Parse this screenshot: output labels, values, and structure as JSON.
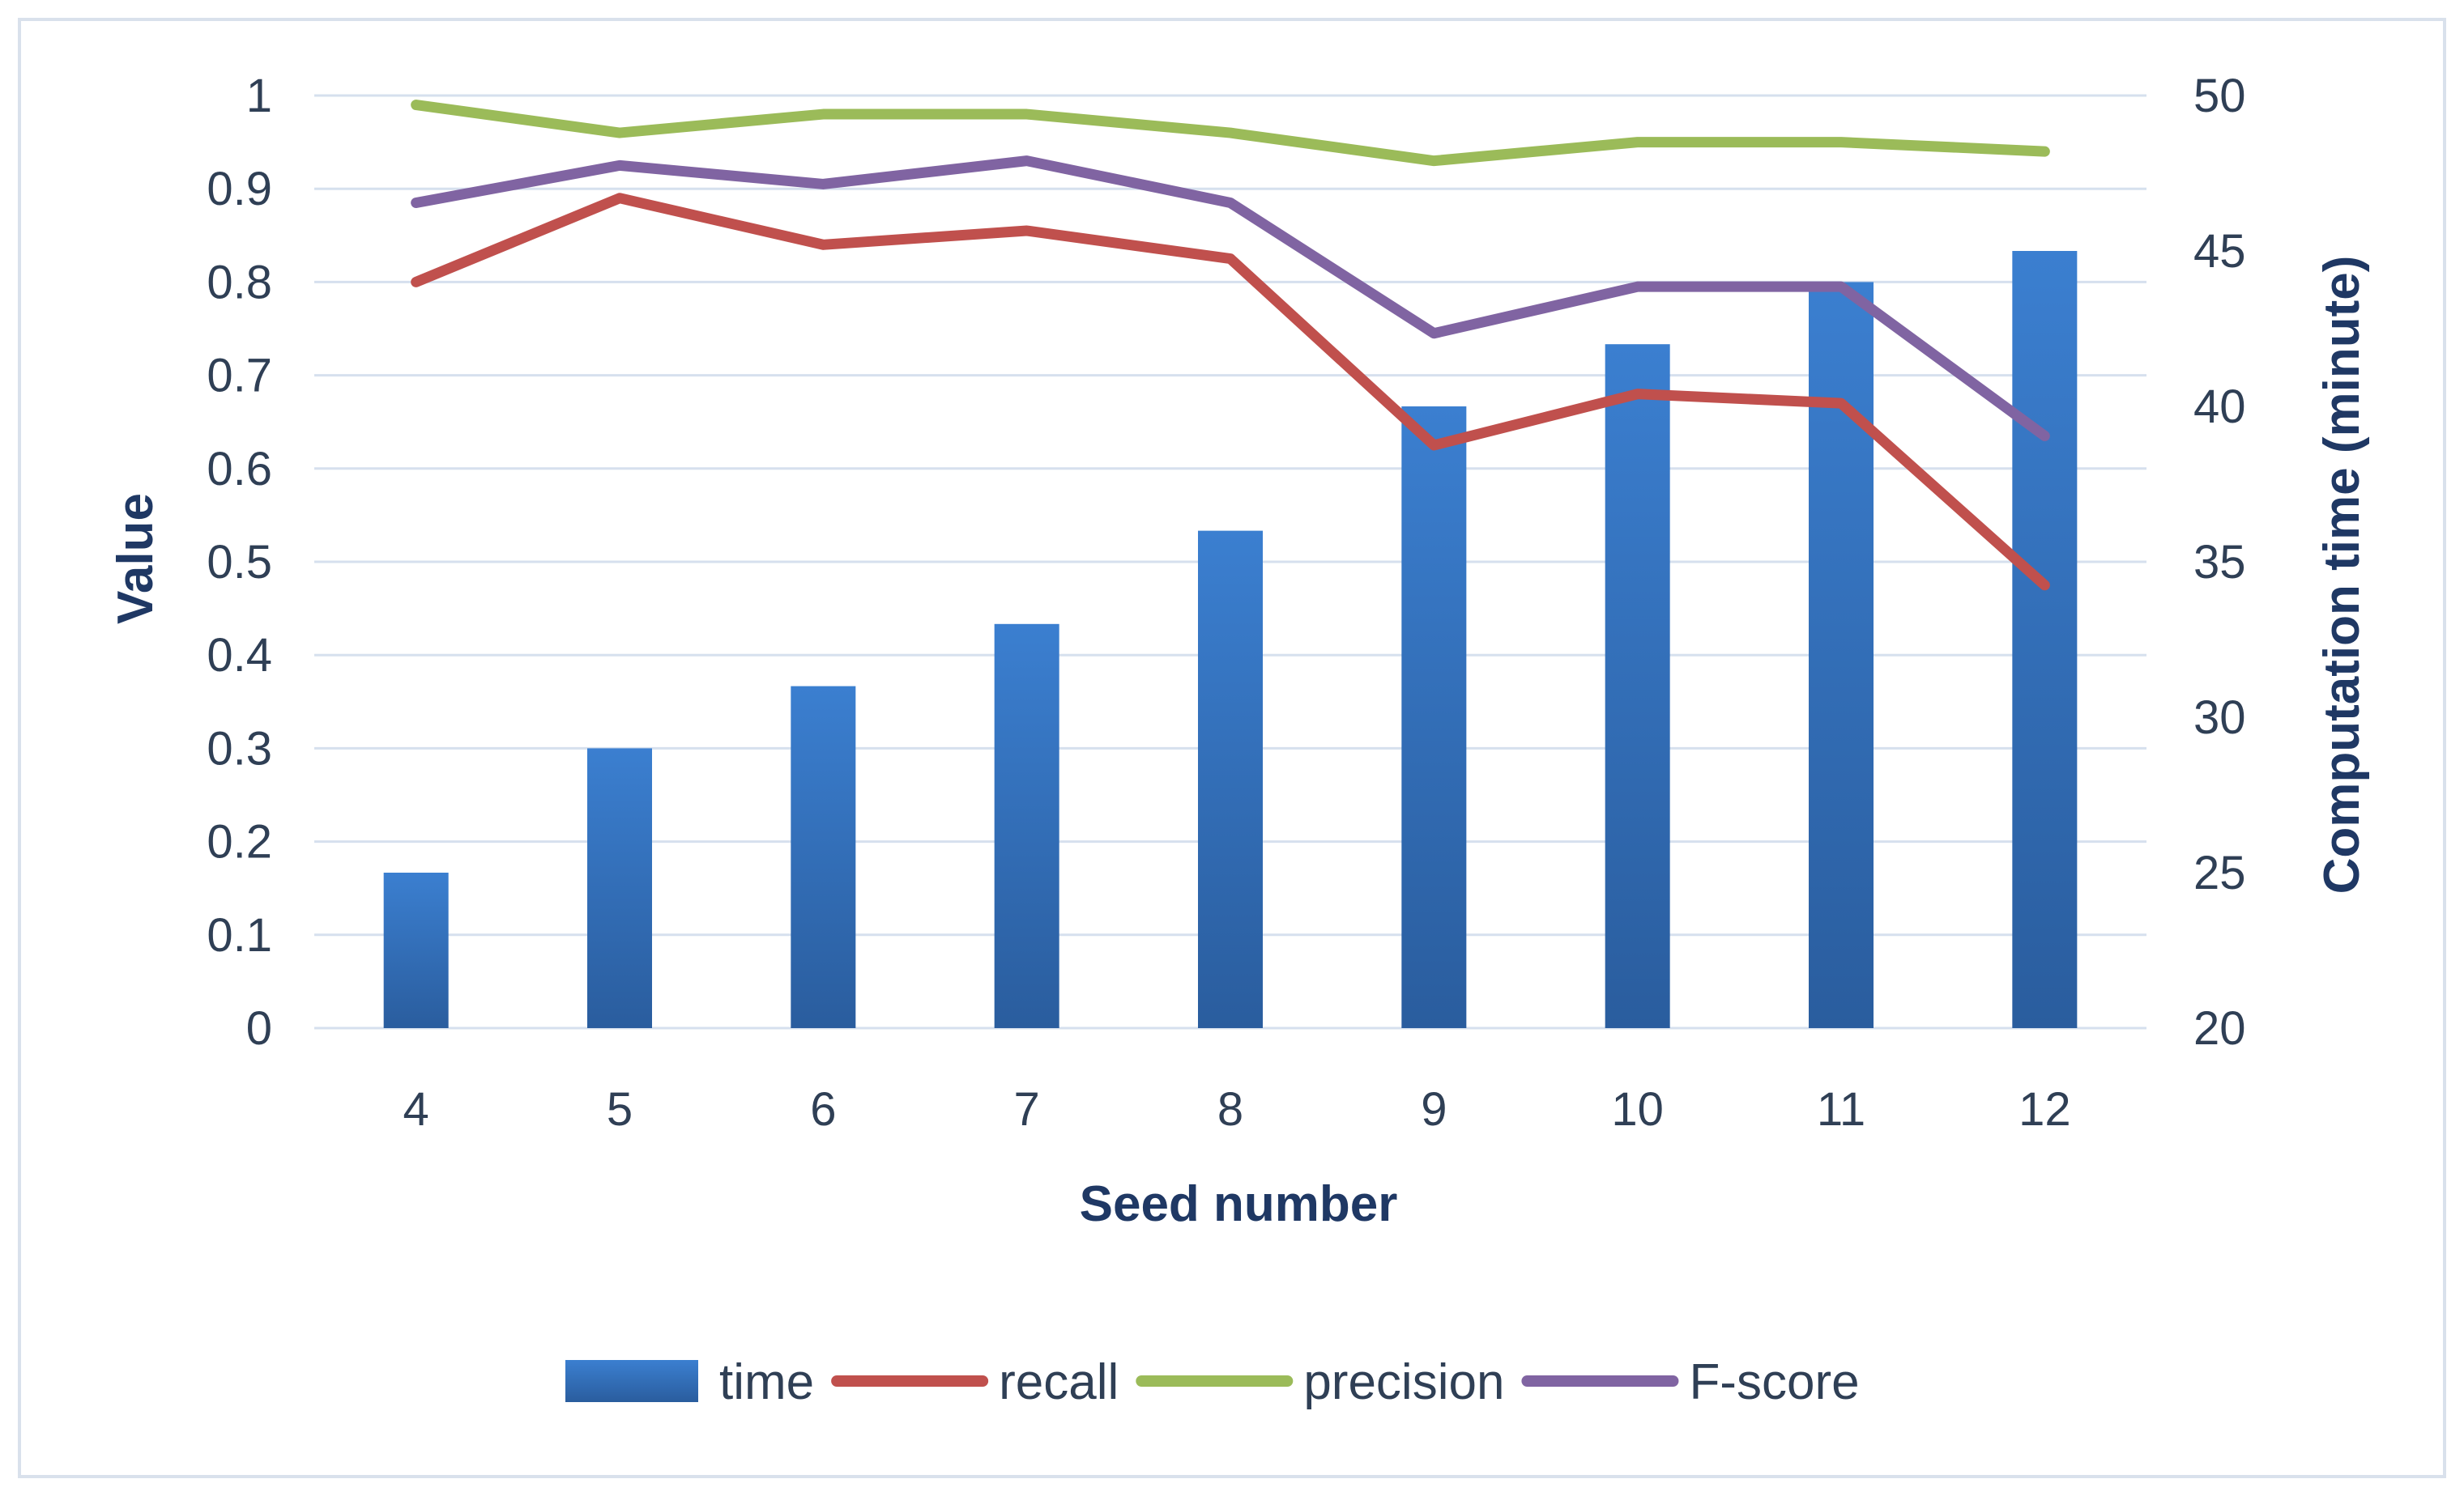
{
  "chart_data": {
    "type": "bar+line",
    "title": "",
    "xlabel": "Seed number",
    "ylabel": "Value",
    "y2label": "Computation time (minute)",
    "categories": [
      "4",
      "5",
      "6",
      "7",
      "8",
      "9",
      "10",
      "11",
      "12"
    ],
    "ylim": [
      0,
      1
    ],
    "y2lim": [
      20,
      50
    ],
    "yticks": [
      "0",
      "0.1",
      "0.2",
      "0.3",
      "0.4",
      "0.5",
      "0.6",
      "0.7",
      "0.8",
      "0.9",
      "1"
    ],
    "y2ticks": [
      "20",
      "25",
      "30",
      "35",
      "40",
      "45",
      "50"
    ],
    "grid": true,
    "legend_position": "bottom",
    "series": [
      {
        "name": "time",
        "kind": "bar",
        "axis": "right",
        "color": "#2e75c6",
        "values": [
          25,
          29,
          31,
          33,
          36,
          40,
          42,
          44,
          45
        ]
      },
      {
        "name": "recall",
        "kind": "line",
        "axis": "left",
        "color": "#c0504d",
        "values": [
          0.8,
          0.89,
          0.84,
          0.855,
          0.825,
          0.625,
          0.68,
          0.67,
          0.475
        ]
      },
      {
        "name": "precision",
        "kind": "line",
        "axis": "left",
        "color": "#9bbb59",
        "values": [
          0.99,
          0.96,
          0.98,
          0.98,
          0.96,
          0.93,
          0.95,
          0.95,
          0.94
        ]
      },
      {
        "name": "F-score",
        "kind": "line",
        "axis": "left",
        "color": "#8064a2",
        "values": [
          0.885,
          0.925,
          0.905,
          0.93,
          0.885,
          0.745,
          0.795,
          0.795,
          0.635
        ]
      }
    ]
  }
}
